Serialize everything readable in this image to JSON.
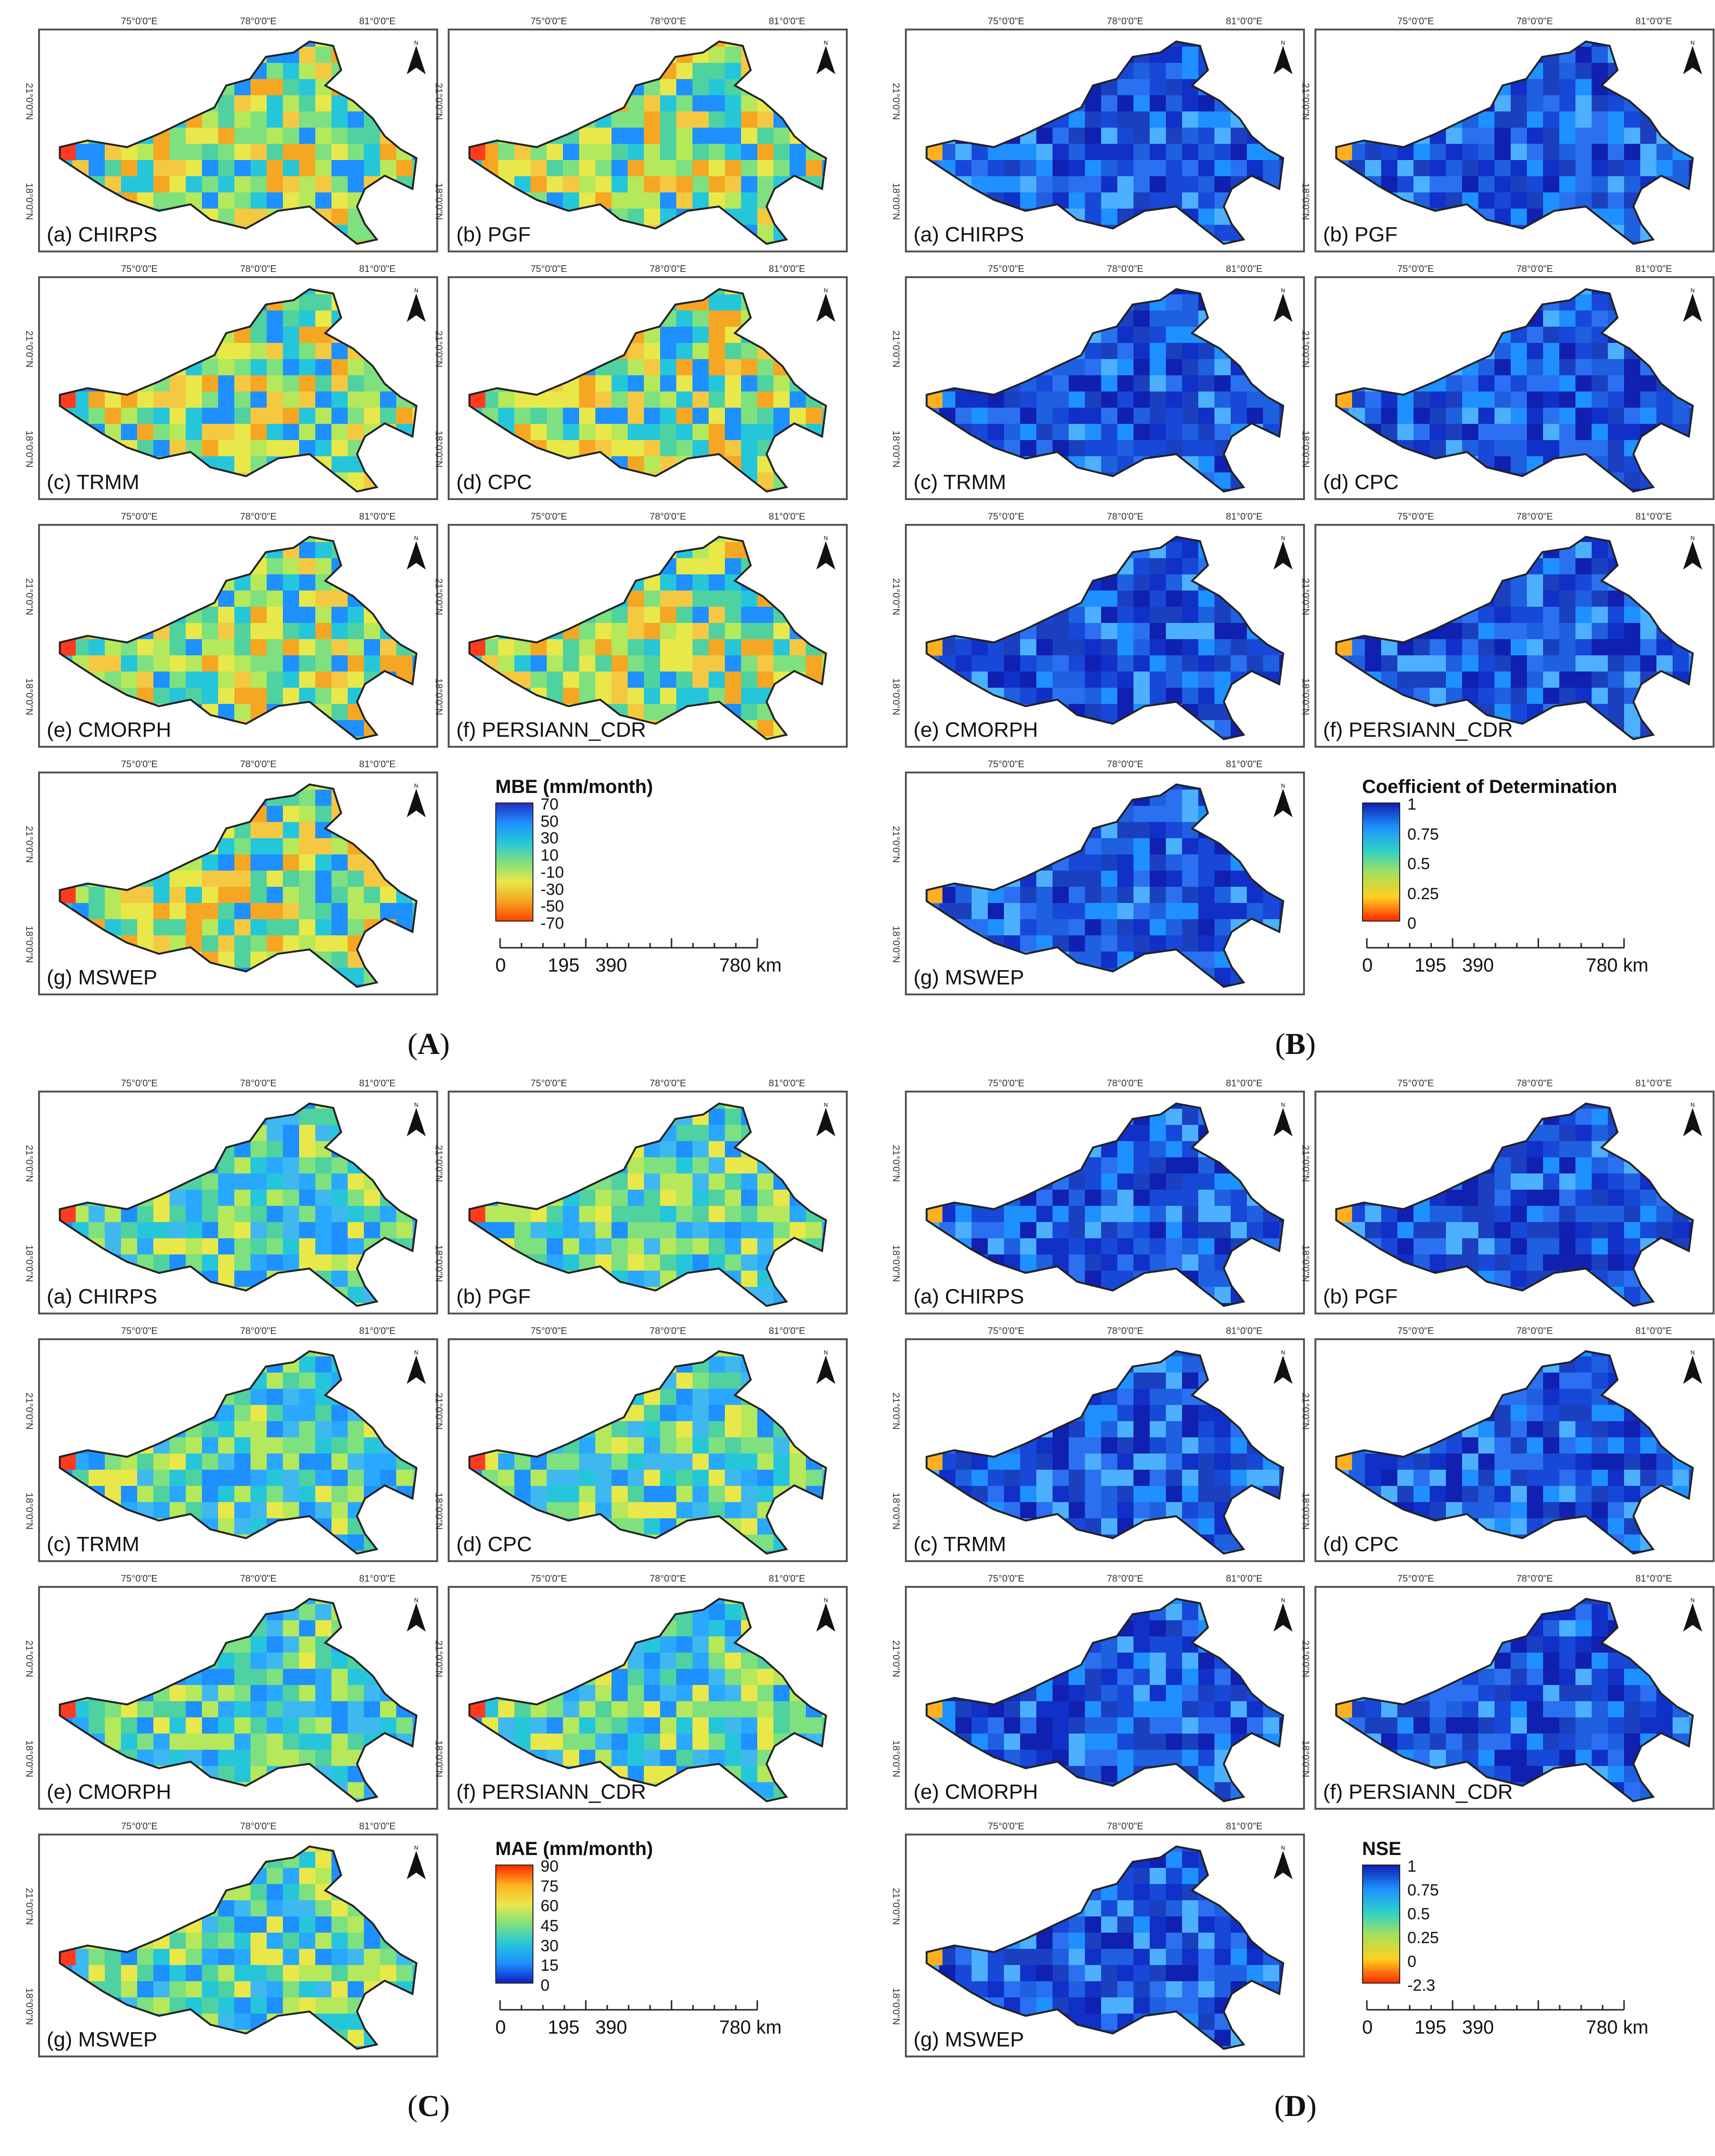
{
  "figure": {
    "panels": [
      {
        "id": "A",
        "label_open": "(",
        "label_letter": "A",
        "label_close": ")",
        "colorscale": "bias",
        "maps": [
          {
            "name": "(a) CHIRPS"
          },
          {
            "name": "(b) PGF"
          },
          {
            "name": "(c) TRMM"
          },
          {
            "name": "(d) CPC"
          },
          {
            "name": "(e) CMORPH"
          },
          {
            "name": "(f) PERSIANN_CDR"
          },
          {
            "name": "(g) MSWEP"
          }
        ],
        "legend": {
          "title": "MBE (mm/month)",
          "ticks": [
            "70",
            "50",
            "30",
            "10",
            "-10",
            "-30",
            "-50",
            "-70"
          ],
          "colors": [
            "#2430c4",
            "#1e90ff",
            "#26c6da",
            "#7ee07e",
            "#e8e84a",
            "#f5a623",
            "#ff4500"
          ]
        },
        "scale": {
          "labels": [
            "0",
            "195",
            "390",
            "780 km"
          ]
        }
      },
      {
        "id": "B",
        "label_open": "(",
        "label_letter": "B",
        "label_close": ")",
        "colorscale": "r2",
        "maps": [
          {
            "name": "(a) CHIRPS"
          },
          {
            "name": "(b) PGF"
          },
          {
            "name": "(c) TRMM"
          },
          {
            "name": "(d) CPC"
          },
          {
            "name": "(e) CMORPH"
          },
          {
            "name": "(f) PERSIANN_CDR"
          },
          {
            "name": "(g) MSWEP"
          }
        ],
        "legend": {
          "title": "Coefficient of Determination",
          "ticks": [
            "1",
            "0.75",
            "0.5",
            "0.25",
            "0"
          ],
          "colors": [
            "#1020b0",
            "#1e90ff",
            "#2ed1c8",
            "#a8e05a",
            "#ffd020",
            "#ff2a00"
          ]
        },
        "scale": {
          "labels": [
            "0",
            "195",
            "390",
            "780 km"
          ]
        }
      },
      {
        "id": "C",
        "label_open": "(",
        "label_letter": "C",
        "label_close": ")",
        "colorscale": "mae",
        "maps": [
          {
            "name": "(a) CHIRPS"
          },
          {
            "name": "(b) PGF"
          },
          {
            "name": "(c) TRMM"
          },
          {
            "name": "(d) CPC"
          },
          {
            "name": "(e) CMORPH"
          },
          {
            "name": "(f) PERSIANN_CDR"
          },
          {
            "name": "(g) MSWEP"
          }
        ],
        "legend": {
          "title": "MAE (mm/month)",
          "ticks": [
            "90",
            "75",
            "60",
            "45",
            "30",
            "15",
            "0"
          ],
          "colors": [
            "#ff2a00",
            "#ffb020",
            "#e8e84a",
            "#7ee07e",
            "#26c6da",
            "#1e90ff",
            "#1020c0"
          ]
        },
        "scale": {
          "labels": [
            "0",
            "195",
            "390",
            "780 km"
          ]
        }
      },
      {
        "id": "D",
        "label_open": "(",
        "label_letter": "D",
        "label_close": ")",
        "colorscale": "nse",
        "maps": [
          {
            "name": "(a) CHIRPS"
          },
          {
            "name": "(b) PGF"
          },
          {
            "name": "(c) TRMM"
          },
          {
            "name": "(d) CPC"
          },
          {
            "name": "(e) CMORPH"
          },
          {
            "name": "(f) PERSIANN_CDR"
          },
          {
            "name": "(g) MSWEP"
          }
        ],
        "legend": {
          "title": "NSE",
          "ticks": [
            "1",
            "0.75",
            "0.5",
            "0.25",
            "0",
            "-2.3"
          ],
          "colors": [
            "#1020b0",
            "#1e90ff",
            "#2ed1c8",
            "#a8e05a",
            "#ffd020",
            "#ff2a00"
          ]
        },
        "scale": {
          "labels": [
            "0",
            "195",
            "390",
            "780 km"
          ]
        }
      }
    ],
    "lon_ticks": [
      "75°0'0\"E",
      "78°0'0\"E",
      "81°0'0\"E"
    ],
    "lat_ticks": [
      "21°0'0\"N",
      "18°0'0\"N"
    ],
    "north_letter": "N",
    "colors": {
      "frame": "#555555",
      "outline": "#222222"
    }
  }
}
